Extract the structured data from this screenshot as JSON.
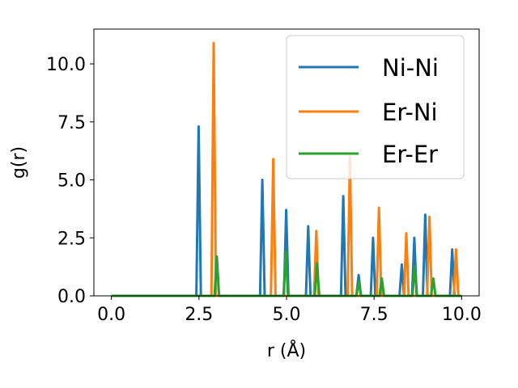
{
  "chart_data": {
    "type": "line",
    "xlabel": "r (Å)",
    "ylabel": "g(r)",
    "xlim": [
      -0.5,
      10.5
    ],
    "ylim": [
      0.0,
      11.5
    ],
    "xticks": [
      "0.0",
      "2.5",
      "5.0",
      "7.5",
      "10.0"
    ],
    "yticks": [
      "0.0",
      "2.5",
      "5.0",
      "7.5",
      "10.0"
    ],
    "grid": false,
    "legend_position": "top-right",
    "series": [
      {
        "name": "Ni-Ni",
        "color": "#1f77b4",
        "peaks": [
          [
            2.49,
            7.3
          ],
          [
            4.31,
            5.0
          ],
          [
            4.99,
            3.7
          ],
          [
            5.62,
            3.0
          ],
          [
            6.62,
            4.3
          ],
          [
            7.06,
            0.9
          ],
          [
            7.47,
            2.5
          ],
          [
            8.29,
            1.35
          ],
          [
            8.65,
            2.5
          ],
          [
            8.96,
            3.5
          ],
          [
            9.73,
            2.0
          ]
        ]
      },
      {
        "name": "Er-Ni",
        "color": "#ff7f0e",
        "peaks": [
          [
            2.92,
            10.9
          ],
          [
            4.62,
            5.9
          ],
          [
            5.85,
            2.8
          ],
          [
            6.81,
            6.0
          ],
          [
            7.64,
            3.8
          ],
          [
            8.42,
            2.7
          ],
          [
            9.08,
            3.4
          ],
          [
            9.84,
            2.0
          ]
        ]
      },
      {
        "name": "Er-Er",
        "color": "#2ca02c",
        "peaks": [
          [
            3.01,
            1.7
          ],
          [
            4.98,
            1.9
          ],
          [
            5.87,
            1.4
          ],
          [
            7.06,
            0.6
          ],
          [
            7.72,
            0.75
          ],
          [
            8.66,
            1.3
          ],
          [
            9.19,
            0.75
          ]
        ]
      }
    ]
  }
}
